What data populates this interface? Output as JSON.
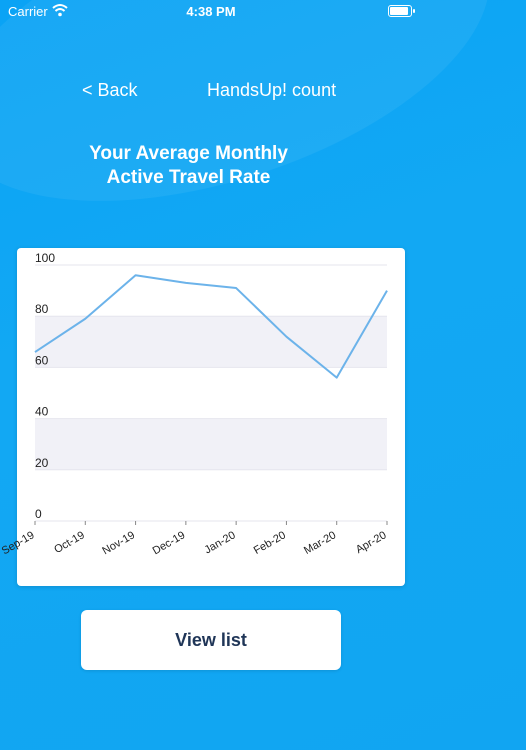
{
  "status_bar": {
    "carrier": "Carrier",
    "time": "4:38 PM",
    "battery_level": 0.95
  },
  "nav": {
    "back_label": "< Back",
    "title": "HandsUp! count"
  },
  "heading": {
    "line1": "Your Average Monthly",
    "line2": "Active Travel Rate"
  },
  "chart_data": {
    "type": "line",
    "categories": [
      "Sep-19",
      "Oct-19",
      "Nov-19",
      "Dec-19",
      "Jan-20",
      "Feb-20",
      "Mar-20",
      "Apr-20"
    ],
    "values": [
      66,
      79,
      96,
      93,
      91,
      72,
      56,
      90
    ],
    "ylim": [
      0,
      100
    ],
    "yticks": [
      0,
      20,
      40,
      60,
      80,
      100
    ],
    "grid": "alternating horizontal bands",
    "line_color": "#6cb3ea",
    "band_color": "#f1f1f7"
  },
  "button": {
    "label": "View list"
  },
  "colors": {
    "background": "#11a5f2",
    "button_text": "#1f3557"
  }
}
